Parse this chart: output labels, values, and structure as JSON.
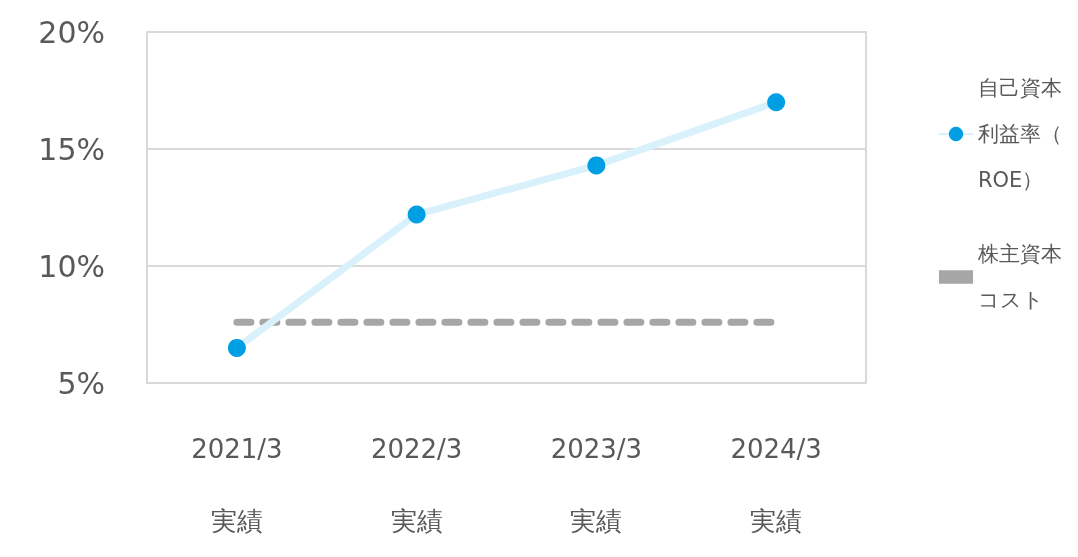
{
  "chart_data": {
    "type": "line",
    "categories": [
      "2021/3\n実績",
      "2022/3\n実績",
      "2023/3\n実績",
      "2024/3\n実績"
    ],
    "series": [
      {
        "name": "自己資本利益率（ROE）",
        "color": "#009fe3",
        "values": [
          6.5,
          12.2,
          14.3,
          17.0
        ],
        "marker": "circle",
        "line_style": "solid"
      },
      {
        "name": "株主資本コスト",
        "color": "#a6a6a6",
        "values": [
          7.6,
          7.6,
          7.6,
          7.6
        ],
        "marker": "none",
        "line_style": "dashed"
      }
    ],
    "ylim": [
      5,
      20
    ],
    "yticks": [
      {
        "value": 5,
        "label": "5%"
      },
      {
        "value": 10,
        "label": "10%"
      },
      {
        "value": 15,
        "label": "15%"
      },
      {
        "value": 20,
        "label": "20%"
      }
    ],
    "grid": "y",
    "legend": "right"
  }
}
